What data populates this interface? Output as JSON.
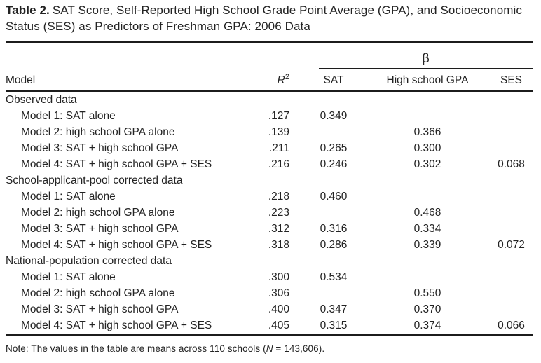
{
  "title": {
    "label": "Table 2.",
    "text": "SAT Score, Self-Reported High School Grade Point Average (GPA), and Socioeconomic Status (SES) as Predictors of Freshman GPA: 2006 Data"
  },
  "table": {
    "spanner_label": "β",
    "header": {
      "model": "Model",
      "r2_base": "R",
      "r2_sup": "2",
      "sat": "SAT",
      "hsgpa": "High school GPA",
      "ses": "SES"
    },
    "rows": [
      {
        "type": "section",
        "model": "Observed data",
        "r2": "",
        "sat": "",
        "hsgpa": "",
        "ses": ""
      },
      {
        "type": "model",
        "model": "Model 1: SAT alone",
        "r2": ".127",
        "sat": "0.349",
        "hsgpa": "",
        "ses": ""
      },
      {
        "type": "model",
        "model": "Model 2: high school GPA alone",
        "r2": ".139",
        "sat": "",
        "hsgpa": "0.366",
        "ses": ""
      },
      {
        "type": "model",
        "model": "Model 3: SAT + high school GPA",
        "r2": ".211",
        "sat": "0.265",
        "hsgpa": "0.300",
        "ses": ""
      },
      {
        "type": "model",
        "model": "Model 4: SAT + high school GPA + SES",
        "r2": ".216",
        "sat": "0.246",
        "hsgpa": "0.302",
        "ses": "0.068"
      },
      {
        "type": "section",
        "model": "School-applicant-pool corrected data",
        "r2": "",
        "sat": "",
        "hsgpa": "",
        "ses": ""
      },
      {
        "type": "model",
        "model": "Model 1: SAT alone",
        "r2": ".218",
        "sat": "0.460",
        "hsgpa": "",
        "ses": ""
      },
      {
        "type": "model",
        "model": "Model 2: high school GPA alone",
        "r2": ".223",
        "sat": "",
        "hsgpa": "0.468",
        "ses": ""
      },
      {
        "type": "model",
        "model": "Model 3: SAT + high school GPA",
        "r2": ".312",
        "sat": "0.316",
        "hsgpa": "0.334",
        "ses": ""
      },
      {
        "type": "model",
        "model": "Model 4: SAT + high school GPA + SES",
        "r2": ".318",
        "sat": "0.286",
        "hsgpa": "0.339",
        "ses": "0.072"
      },
      {
        "type": "section",
        "model": "National-population corrected data",
        "r2": "",
        "sat": "",
        "hsgpa": "",
        "ses": ""
      },
      {
        "type": "model",
        "model": "Model 1: SAT alone",
        "r2": ".300",
        "sat": "0.534",
        "hsgpa": "",
        "ses": ""
      },
      {
        "type": "model",
        "model": "Model 2: high school GPA alone",
        "r2": ".306",
        "sat": "",
        "hsgpa": "0.550",
        "ses": ""
      },
      {
        "type": "model",
        "model": "Model 3: SAT + high school GPA",
        "r2": ".400",
        "sat": "0.347",
        "hsgpa": "0.370",
        "ses": ""
      },
      {
        "type": "model",
        "model": "Model 4: SAT + high school GPA + SES",
        "r2": ".405",
        "sat": "0.315",
        "hsgpa": "0.374",
        "ses": "0.066"
      }
    ]
  },
  "note": {
    "prefix": "Note: The values in the table are means across 110 schools (",
    "n": "N",
    "suffix": " = 143,606)."
  },
  "colors": {
    "background": "#ffffff",
    "text": "#232323",
    "rule": "#1c1c1c"
  }
}
